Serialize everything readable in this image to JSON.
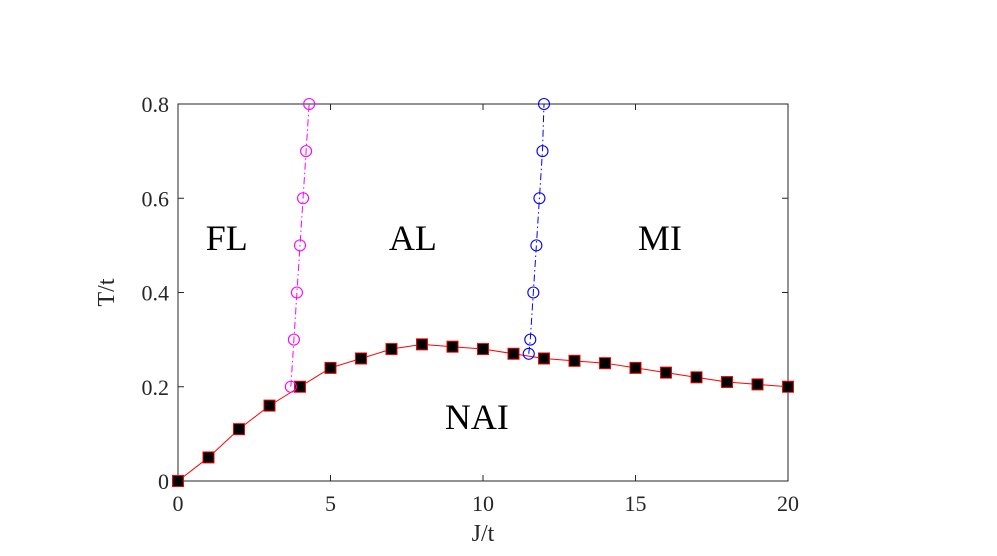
{
  "chart_data": {
    "type": "line",
    "title": "",
    "xlabel": "J/t",
    "ylabel": "T/t",
    "xlim": [
      0,
      20
    ],
    "ylim": [
      0,
      0.8
    ],
    "xticks": [
      0,
      5,
      10,
      15,
      20
    ],
    "yticks": [
      0,
      0.2,
      0.4,
      0.6,
      0.8
    ],
    "xtick_labels": [
      "0",
      "5",
      "10",
      "15",
      "20"
    ],
    "ytick_labels": [
      "0",
      "0.2",
      "0.4",
      "0.6",
      "0.8"
    ],
    "grid": false,
    "box": true,
    "series": [
      {
        "key": "nai-boundary",
        "color": "#ff0000",
        "marker": "square",
        "marker_face": "#000000",
        "marker_edge": "#ff0000",
        "line_style": "solid",
        "x": [
          0,
          1,
          2,
          3,
          4,
          5,
          6,
          7,
          8,
          9,
          10,
          11,
          12,
          13,
          14,
          15,
          16,
          17,
          18,
          19,
          20
        ],
        "y": [
          0,
          0.05,
          0.11,
          0.16,
          0.2,
          0.24,
          0.26,
          0.28,
          0.29,
          0.285,
          0.28,
          0.27,
          0.26,
          0.255,
          0.25,
          0.24,
          0.23,
          0.22,
          0.21,
          0.205,
          0.2
        ]
      },
      {
        "key": "fl-al-boundary",
        "color": "#ff00ff",
        "marker": "circle",
        "marker_face": "none",
        "marker_edge": "#ff00ff",
        "line_style": "dashdot",
        "x": [
          3.7,
          3.8,
          3.9,
          4.0,
          4.1,
          4.2,
          4.3
        ],
        "y": [
          0.2,
          0.3,
          0.4,
          0.5,
          0.6,
          0.7,
          0.8
        ]
      },
      {
        "key": "al-mi-boundary",
        "color": "#0000ff",
        "marker": "circle",
        "marker_face": "none",
        "marker_edge": "#0000ff",
        "line_style": "dashdot",
        "x": [
          11.5,
          11.55,
          11.65,
          11.75,
          11.85,
          11.95,
          12.0
        ],
        "y": [
          0.27,
          0.3,
          0.4,
          0.5,
          0.6,
          0.7,
          0.8
        ]
      }
    ],
    "annotations": [
      {
        "key": "fl",
        "text": "FL",
        "x": 1.6,
        "y": 0.49
      },
      {
        "key": "al",
        "text": "AL",
        "x": 7.7,
        "y": 0.49
      },
      {
        "key": "mi",
        "text": "MI",
        "x": 15.8,
        "y": 0.49
      },
      {
        "key": "nai",
        "text": "NAI",
        "x": 9.8,
        "y": 0.11
      }
    ]
  }
}
